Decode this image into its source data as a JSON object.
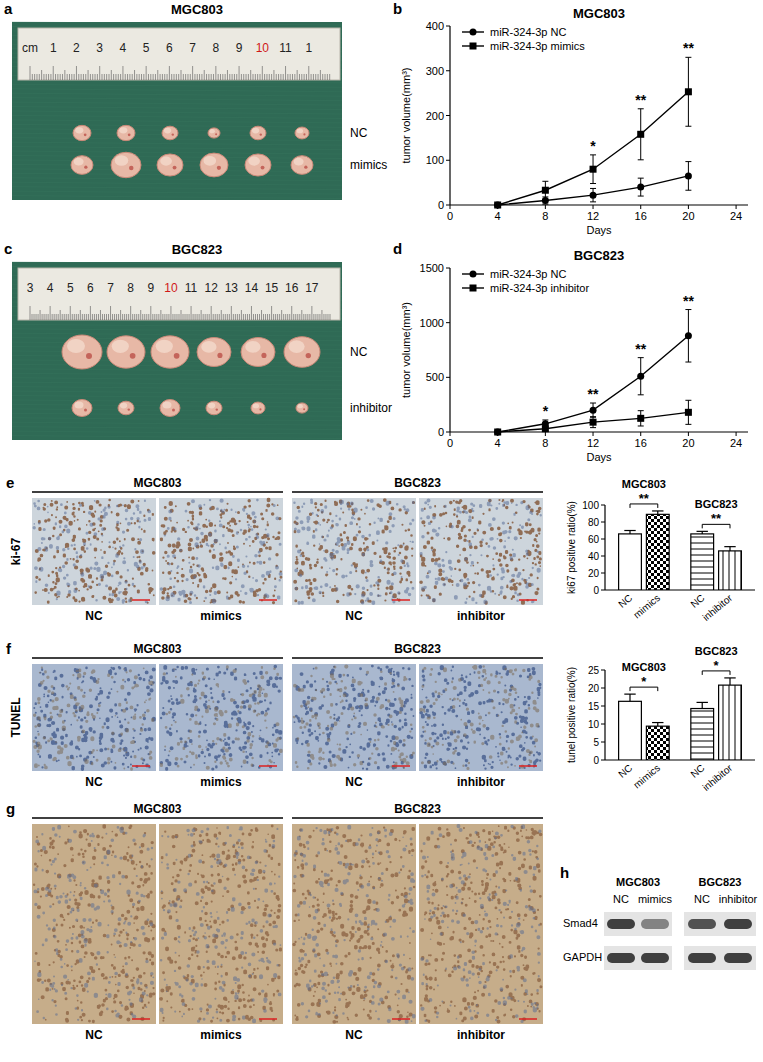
{
  "chart_data": [
    {
      "type": "line",
      "panel": "b",
      "title": "MGC803",
      "x_label": "Days",
      "y_label": "tumor volume(mm³)",
      "x": [
        4,
        8,
        12,
        16,
        20
      ],
      "series": [
        {
          "name": "miR-324-3p NC",
          "color": "#000000",
          "marker": "circle",
          "values": [
            0,
            10,
            22,
            40,
            65
          ],
          "errors": [
            0,
            8,
            15,
            20,
            32
          ]
        },
        {
          "name": "miR-324-3p mimics",
          "color": "#000000",
          "marker": "square",
          "values": [
            0,
            33,
            80,
            158,
            253
          ],
          "errors": [
            0,
            20,
            32,
            57,
            77
          ]
        }
      ],
      "xlim": [
        0,
        25
      ],
      "xticks": [
        0,
        4,
        8,
        12,
        16,
        20,
        24
      ],
      "ylim": [
        0,
        400
      ],
      "yticks": [
        0,
        100,
        200,
        300,
        400
      ],
      "legend": "upper left",
      "annotations": [
        {
          "x": 12,
          "text": "*"
        },
        {
          "x": 16,
          "text": "**"
        },
        {
          "x": 20,
          "text": "**"
        }
      ]
    },
    {
      "type": "line",
      "panel": "d",
      "title": "BGC823",
      "x_label": "Days",
      "y_label": "tumor volume(mm³)",
      "x": [
        4,
        8,
        12,
        16,
        20
      ],
      "series": [
        {
          "name": "miR-324-3p NC",
          "color": "#000000",
          "marker": "circle",
          "values": [
            0,
            75,
            200,
            510,
            880
          ],
          "errors": [
            0,
            35,
            65,
            170,
            240
          ]
        },
        {
          "name": "miR-324-3p inhibitor",
          "color": "#000000",
          "marker": "square",
          "values": [
            0,
            30,
            90,
            125,
            180
          ],
          "errors": [
            0,
            20,
            50,
            70,
            110
          ]
        }
      ],
      "xlim": [
        0,
        25
      ],
      "xticks": [
        0,
        4,
        8,
        12,
        16,
        20,
        24
      ],
      "ylim": [
        0,
        1500
      ],
      "yticks": [
        0,
        500,
        1000,
        1500
      ],
      "legend": "upper left",
      "annotations": [
        {
          "x": 8,
          "text": "*"
        },
        {
          "x": 12,
          "text": "**"
        },
        {
          "x": 16,
          "text": "**"
        },
        {
          "x": 20,
          "text": "**"
        }
      ]
    },
    {
      "type": "bar",
      "y_label": "ki67 positive ratio(%)",
      "categories": [
        "NC",
        "mimics",
        "NC",
        "inhibitor"
      ],
      "values": [
        66,
        89,
        66,
        46
      ],
      "errors": [
        4,
        4,
        3,
        5
      ],
      "colors": [
        "#ffffff",
        "#ffffff",
        "#ffffff",
        "#ffffff"
      ],
      "group_labels": [
        "MGC803",
        "BGC823"
      ],
      "annotations": [
        {
          "text": "**"
        },
        {
          "text": "**"
        }
      ],
      "ylim": [
        0,
        100
      ],
      "yticks": [
        0,
        20,
        40,
        60,
        80,
        100
      ]
    },
    {
      "type": "bar",
      "y_label": "tunel positive ratio(%)",
      "categories": [
        "NC",
        "mimics",
        "NC",
        "inhibitor"
      ],
      "values": [
        16.3,
        9.4,
        14.3,
        20.8
      ],
      "errors": [
        2,
        1,
        1.7,
        2
      ],
      "colors": [
        "#ffffff",
        "#ffffff",
        "#ffffff",
        "#ffffff"
      ],
      "group_labels": [
        "MGC803",
        "BGC823"
      ],
      "annotations": [
        {
          "text": "*"
        },
        {
          "text": "*"
        }
      ],
      "ylim": [
        0,
        25
      ],
      "yticks": [
        0,
        5,
        10,
        15,
        20,
        25
      ]
    }
  ],
  "images": {
    "a": {
      "letter": "a",
      "title": "MGC803",
      "ruler": [
        "cm",
        "1",
        "2",
        "3",
        "4",
        "5",
        "6",
        "7",
        "8",
        "9",
        "10",
        "11",
        "1"
      ],
      "labels": [
        "NC",
        "mimics"
      ]
    },
    "c": {
      "letter": "c",
      "title": "BGC823",
      "ruler": [
        "3",
        "4",
        "5",
        "6",
        "7",
        "8",
        "9",
        "10",
        "11",
        "12",
        "13",
        "14",
        "15",
        "16",
        "17"
      ],
      "labels": [
        "NC",
        "inhibitor"
      ]
    },
    "e": {
      "letter": "e",
      "side_label": "ki-67",
      "groups": [
        "MGC803",
        "BGC823"
      ],
      "labels": [
        "NC",
        "mimics",
        "NC",
        "inhibitor"
      ]
    },
    "f": {
      "letter": "f",
      "side_label": "TUNEL",
      "groups": [
        "MGC803",
        "BGC823"
      ],
      "labels": [
        "NC",
        "mimics",
        "NC",
        "inhibitor"
      ]
    },
    "g": {
      "letter": "g",
      "groups": [
        "MGC803",
        "BGC823"
      ],
      "labels": [
        "NC",
        "mimics",
        "NC",
        "inhibitor"
      ]
    },
    "h": {
      "letter": "h",
      "groups": [
        "MGC803",
        "BGC823"
      ],
      "lanes": [
        "NC",
        "mimics",
        "NC",
        "inhibitor"
      ],
      "rows": [
        "Smad4",
        "GAPDH"
      ]
    }
  }
}
